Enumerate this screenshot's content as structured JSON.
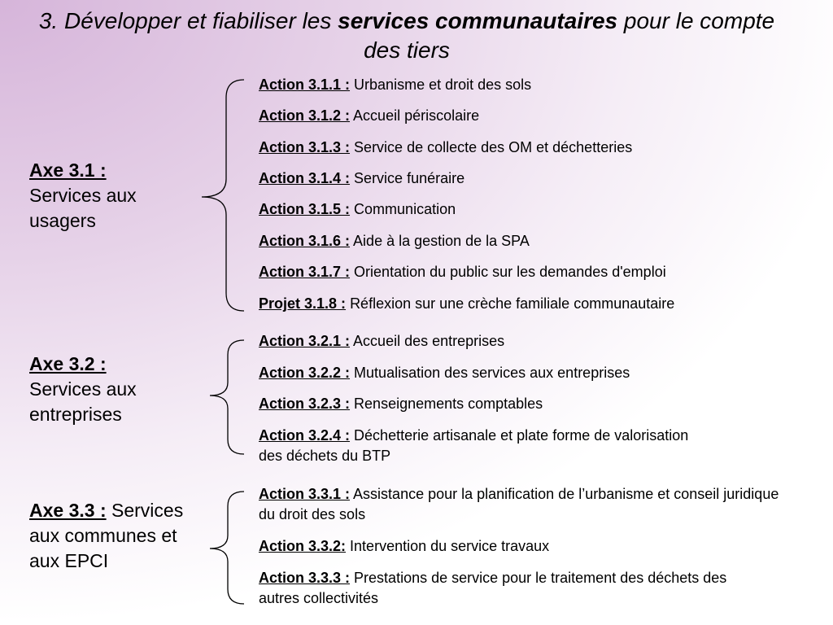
{
  "title": {
    "part1": "3. Développer et fiabiliser les ",
    "bold": "services communautaires",
    "part2": " pour le compte des tiers"
  },
  "axes": [
    {
      "label": "Axe 3.1 :",
      "text": "Services aux usagers",
      "actions": [
        {
          "label": "Action 3.1.1 :",
          "text": "Urbanisme et droit des sols"
        },
        {
          "label": "Action 3.1.2 :",
          "text": "Accueil périscolaire"
        },
        {
          "label": "Action 3.1.3 :",
          "text": "Service de collecte des OM et déchetteries"
        },
        {
          "label": "Action 3.1.4 :",
          "text": "Service funéraire"
        },
        {
          "label": "Action 3.1.5 :",
          "text": "Communication"
        },
        {
          "label": "Action 3.1.6 :",
          "text": "Aide à la gestion de la SPA"
        },
        {
          "label": "Action 3.1.7 :",
          "text": "Orientation du public sur les demandes d'emploi"
        },
        {
          "label": "Projet 3.1.8 :",
          "text": "Réflexion sur une crèche familiale communautaire"
        }
      ]
    },
    {
      "label": "Axe 3.2 :",
      "text": "Services aux entreprises",
      "actions": [
        {
          "label": "Action 3.2.1 :",
          "text": "Accueil des entreprises"
        },
        {
          "label": "Action 3.2.2 :",
          "text": "Mutualisation des services aux entreprises"
        },
        {
          "label": "Action 3.2.3 :",
          "text": "Renseignements comptables"
        },
        {
          "label": "Action 3.2.4 :",
          "text": "Déchetterie artisanale et plate forme de valorisation des déchets du BTP"
        }
      ]
    },
    {
      "label": "Axe 3.3 :",
      "text": "Services aux communes et aux EPCI",
      "actions": [
        {
          "label": "Action 3.3.1 :",
          "text": "Assistance pour la planification de l’urbanisme et conseil juridique du droit des sols"
        },
        {
          "label": "Action 3.3.2:",
          "text": "Intervention du service travaux"
        },
        {
          "label": "Action 3.3.3 :",
          "text": "Prestations de service pour le traitement des déchets des autres collectivités"
        }
      ]
    }
  ]
}
